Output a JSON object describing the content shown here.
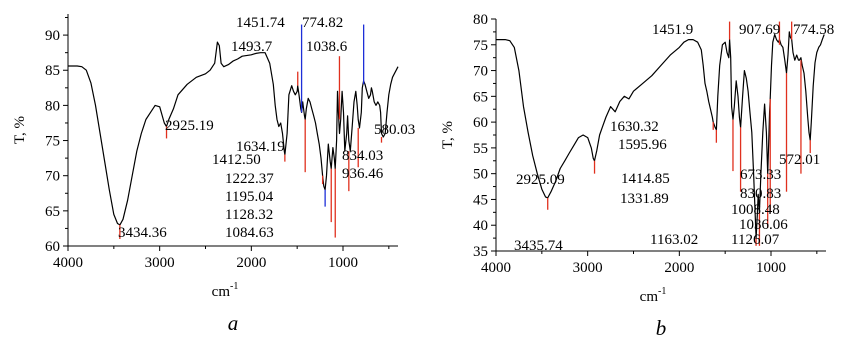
{
  "chart_data": [
    {
      "type": "line",
      "panel_label": "a",
      "xlabel": "cm",
      "xlabel_sup": "-1",
      "ylabel": "T, %",
      "xlim": [
        4000,
        400
      ],
      "ylim": [
        60,
        93
      ],
      "xticks": [
        4000,
        3000,
        2000,
        1000
      ],
      "yticks": [
        60,
        65,
        70,
        75,
        80,
        85,
        90
      ],
      "grid": false,
      "series": [
        {
          "x": [
            4000,
            3950,
            3900,
            3850,
            3800,
            3750,
            3700,
            3650,
            3600,
            3550,
            3500,
            3460,
            3434.36,
            3400,
            3350,
            3300,
            3250,
            3200,
            3150,
            3100,
            3050,
            3000,
            2960,
            2950,
            2925.19,
            2900,
            2850,
            2800,
            2700,
            2600,
            2500,
            2450,
            2400,
            2370,
            2350,
            2330,
            2300,
            2250,
            2200,
            2150,
            2100,
            2000,
            1950,
            1900,
            1850,
            1800,
            1760,
            1740,
            1720,
            1700,
            1680,
            1660,
            1640,
            1634.19,
            1610,
            1590,
            1560,
            1540,
            1520,
            1500,
            1493.7,
            1480,
            1460,
            1451.74,
            1440,
            1430,
            1420,
            1412.5,
            1400,
            1380,
            1360,
            1340,
            1320,
            1300,
            1280,
            1260,
            1240,
            1222.37,
            1210,
            1195.04,
            1180,
            1160,
            1140,
            1128.32,
            1110,
            1095,
            1084.63,
            1070,
            1060,
            1050,
            1038.6,
            1025,
            1010,
            995,
            980,
            960,
            950,
            936.46,
            920,
            900,
            880,
            860,
            845,
            834.03,
            820,
            800,
            790,
            774.82,
            760,
            740,
            720,
            700,
            690,
            680,
            660,
            640,
            620,
            600,
            590,
            580.03,
            560,
            540,
            520,
            500,
            480,
            460,
            440,
            420,
            400
          ],
          "y": [
            85.6,
            85.6,
            85.6,
            85.5,
            85.0,
            83.2,
            80.0,
            76.0,
            72.0,
            68.0,
            64.5,
            63.2,
            63.0,
            63.8,
            66.5,
            70.0,
            73.5,
            76.0,
            78.0,
            79.0,
            80.0,
            79.8,
            78.0,
            77.5,
            77.0,
            78.0,
            79.5,
            81.5,
            83.0,
            84.0,
            84.5,
            85.0,
            86.0,
            89.0,
            88.5,
            86.0,
            85.5,
            85.8,
            86.3,
            86.6,
            87.0,
            87.2,
            87.4,
            87.5,
            87.5,
            86.0,
            83.0,
            80.0,
            78.0,
            77.0,
            77.5,
            76.0,
            73.5,
            73.0,
            76.0,
            81.5,
            82.8,
            82.0,
            81.5,
            82.0,
            82.8,
            81.5,
            79.5,
            79.0,
            80.5,
            79.5,
            78.5,
            78.0,
            79.5,
            81.0,
            80.5,
            79.5,
            78.5,
            77.5,
            76.0,
            74.5,
            72.5,
            70.0,
            68.5,
            68.0,
            70.0,
            74.5,
            72.0,
            71.0,
            74.0,
            72.5,
            71.0,
            75.0,
            82.0,
            79.0,
            76.0,
            78.0,
            82.0,
            79.0,
            73.5,
            76.0,
            78.5,
            75.0,
            73.5,
            77.0,
            80.5,
            82.0,
            80.0,
            78.0,
            76.8,
            79.0,
            82.5,
            83.5,
            83.0,
            82.0,
            81.0,
            81.5,
            82.5,
            82.0,
            80.5,
            80.0,
            80.5,
            80.0,
            79.0,
            76.0,
            75.5,
            76.0,
            79.0,
            81.5,
            83.0,
            84.0,
            84.5,
            85.0,
            85.5
          ]
        }
      ],
      "markers": [
        {
          "x": 3434.36,
          "color": "#e0301e",
          "label": "3434.36",
          "y_from": 63.0,
          "y_to": 61.0
        },
        {
          "x": 2925.19,
          "color": "#e0301e",
          "label": "2925.19",
          "y_from": 77.0,
          "y_to": 75.3
        },
        {
          "x": 1634.19,
          "color": "#e0301e",
          "label": "1634.19",
          "y_from": 73.0,
          "y_to": 72.0
        },
        {
          "x": 1493.7,
          "color": "#e0301e",
          "label": "1493.7",
          "y_from": 82.8,
          "y_to": 84.8
        },
        {
          "x": 1451.74,
          "color": "#1d2fd8",
          "label": "1451.74",
          "y_from": 79.0,
          "y_to": 91.5
        },
        {
          "x": 1412.5,
          "color": "#e0301e",
          "label": "1412.50",
          "y_from": 78.0,
          "y_to": 70.5
        },
        {
          "x": 1222.37,
          "color": "#e0301e",
          "label": "1222.37",
          "y_from": 70.0,
          "y_to": 68.8
        },
        {
          "x": 1195.04,
          "color": "#1d2fd8",
          "label": "1195.04",
          "y_from": 68.0,
          "y_to": 65.6
        },
        {
          "x": 1128.32,
          "color": "#e0301e",
          "label": "1128.32",
          "y_from": 71.0,
          "y_to": 63.4
        },
        {
          "x": 1084.63,
          "color": "#e0301e",
          "label": "1084.63",
          "y_from": 71.0,
          "y_to": 61.2
        },
        {
          "x": 1038.6,
          "color": "#e0301e",
          "label": "1038.6",
          "y_from": 78.0,
          "y_to": 87.0
        },
        {
          "x": 936.46,
          "color": "#e0301e",
          "label": "936.46",
          "y_from": 73.5,
          "y_to": 67.8
        },
        {
          "x": 834.03,
          "color": "#e0301e",
          "label": "834.03",
          "y_from": 76.8,
          "y_to": 71.2
        },
        {
          "x": 774.82,
          "color": "#1d2fd8",
          "label": "774.82",
          "y_from": 83.0,
          "y_to": 91.5
        },
        {
          "x": 580.03,
          "color": "#e0301e",
          "label": "580.03",
          "y_from": 75.5,
          "y_to": 74.7
        }
      ]
    },
    {
      "type": "line",
      "panel_label": "b",
      "xlabel": "cm",
      "xlabel_sup": "-1",
      "ylabel": "T, %",
      "xlim": [
        4000,
        400
      ],
      "ylim": [
        35,
        80
      ],
      "xticks": [
        4000,
        3000,
        2000,
        1000
      ],
      "yticks": [
        35,
        40,
        45,
        50,
        55,
        60,
        65,
        70,
        75,
        80
      ],
      "grid": false,
      "series": [
        {
          "x": [
            4000,
            3950,
            3900,
            3850,
            3800,
            3750,
            3700,
            3650,
            3600,
            3550,
            3500,
            3460,
            3435.74,
            3400,
            3350,
            3300,
            3250,
            3200,
            3150,
            3100,
            3050,
            3000,
            2960,
            2940,
            2925.09,
            2900,
            2870,
            2840,
            2800,
            2750,
            2700,
            2650,
            2600,
            2550,
            2500,
            2400,
            2300,
            2200,
            2100,
            2000,
            1950,
            1900,
            1850,
            1800,
            1760,
            1740,
            1720,
            1700,
            1680,
            1660,
            1640,
            1630.32,
            1610,
            1595.96,
            1580,
            1560,
            1530,
            1500,
            1480,
            1460,
            1451.9,
            1440,
            1430,
            1414.85,
            1400,
            1380,
            1360,
            1345,
            1331.89,
            1310,
            1290,
            1270,
            1250,
            1230,
            1210,
            1190,
            1175,
            1163.02,
            1150,
            1140,
            1126.07,
            1110,
            1090,
            1070,
            1050,
            1036.06,
            1025,
            1015,
            1008.48,
            995,
            980,
            960,
            940,
            920,
            907.69,
            890,
            870,
            850,
            830.83,
            815,
            800,
            790,
            774.58,
            760,
            740,
            720,
            700,
            690,
            673.33,
            660,
            640,
            620,
            600,
            585,
            572.01,
            560,
            540,
            520,
            500,
            480,
            460,
            440,
            420
          ],
          "y": [
            76.0,
            76.0,
            76.0,
            75.8,
            74.5,
            70.0,
            63.0,
            58.0,
            53.5,
            50.0,
            47.0,
            45.5,
            45.3,
            46.5,
            48.5,
            51.0,
            52.5,
            54.0,
            55.5,
            57.0,
            57.5,
            57.0,
            55.0,
            53.0,
            52.5,
            54.5,
            57.5,
            59.0,
            61.0,
            63.0,
            62.0,
            64.0,
            65.0,
            64.5,
            66.0,
            67.5,
            69.0,
            71.0,
            73.0,
            74.5,
            75.5,
            76.0,
            76.0,
            75.5,
            74.0,
            71.0,
            67.5,
            66.0,
            64.0,
            62.5,
            61.0,
            60.0,
            59.0,
            58.5,
            65.0,
            71.0,
            75.0,
            75.5,
            73.5,
            72.5,
            76.0,
            72.5,
            63.0,
            60.5,
            63.0,
            68.0,
            65.0,
            61.0,
            59.0,
            65.0,
            70.0,
            68.5,
            66.0,
            62.0,
            58.0,
            50.0,
            43.0,
            37.5,
            42.0,
            46.0,
            42.5,
            50.0,
            58.0,
            63.5,
            58.0,
            50.0,
            56.0,
            62.0,
            64.5,
            71.0,
            75.5,
            77.0,
            76.0,
            75.5,
            76.0,
            75.0,
            74.5,
            72.0,
            69.5,
            73.0,
            77.5,
            76.5,
            76.0,
            73.5,
            72.0,
            73.0,
            72.0,
            72.0,
            72.5,
            71.0,
            69.5,
            66.0,
            61.0,
            58.0,
            56.5,
            60.0,
            67.0,
            71.5,
            73.5,
            74.5,
            75.0,
            76.0,
            77.0
          ]
        }
      ],
      "markers": [
        {
          "x": 3435.74,
          "color": "#e0301e",
          "label": "3435.74",
          "y_from": 45.3,
          "y_to": 43.0
        },
        {
          "x": 2925.09,
          "color": "#e0301e",
          "label": "2925.09",
          "y_from": 52.5,
          "y_to": 50.0
        },
        {
          "x": 1630.32,
          "color": "#e0301e",
          "label": "1630.32",
          "y_from": 60.0,
          "y_to": 58.5
        },
        {
          "x": 1595.96,
          "color": "#e0301e",
          "label": "1595.96",
          "y_from": 58.5,
          "y_to": 56.0
        },
        {
          "x": 1451.9,
          "color": "#e0301e",
          "label": "1451.9",
          "y_from": 76.0,
          "y_to": 79.5
        },
        {
          "x": 1414.85,
          "color": "#e0301e",
          "label": "1414.85",
          "y_from": 60.5,
          "y_to": 50.5
        },
        {
          "x": 1331.89,
          "color": "#e0301e",
          "label": "1331.89",
          "y_from": 59.0,
          "y_to": 46.5
        },
        {
          "x": 1163.02,
          "color": "#e0301e",
          "label": "1163.02",
          "y_from": 37.5,
          "y_to": 36.0
        },
        {
          "x": 1126.07,
          "color": "#e0301e",
          "label": "1126.07",
          "y_from": 42.5,
          "y_to": 36.0
        },
        {
          "x": 1036.06,
          "color": "#e0301e",
          "label": "1036.06",
          "y_from": 50.0,
          "y_to": 39.5
        },
        {
          "x": 1008.48,
          "color": "#e0301e",
          "label": "1008.48",
          "y_from": 64.5,
          "y_to": 42.5
        },
        {
          "x": 907.69,
          "color": "#e0301e",
          "label": "907.69",
          "y_from": 75.0,
          "y_to": 79.5
        },
        {
          "x": 830.83,
          "color": "#e0301e",
          "label": "830.83",
          "y_from": 69.5,
          "y_to": 46.5
        },
        {
          "x": 774.58,
          "color": "#e0301e",
          "label": "774.58",
          "y_from": 76.0,
          "y_to": 79.5
        },
        {
          "x": 673.33,
          "color": "#e0301e",
          "label": "673.33",
          "y_from": 72.0,
          "y_to": 50.0
        },
        {
          "x": 572.01,
          "color": "#e0301e",
          "label": "572.01",
          "y_from": 56.5,
          "y_to": 54.0
        }
      ]
    }
  ]
}
